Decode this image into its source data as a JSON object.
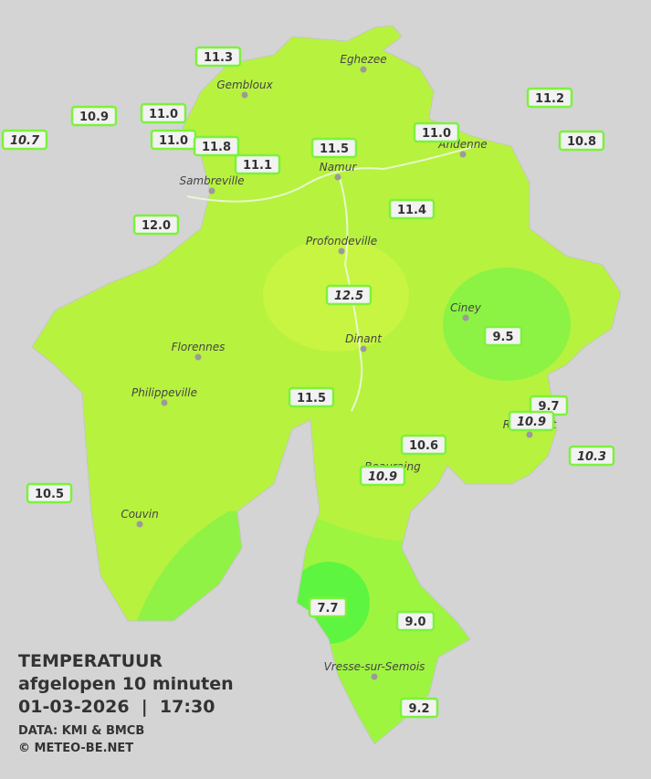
{
  "title": {
    "line1": "TEMPERATUUR",
    "line2": "afgelopen 10 minuten",
    "line3": "01-03-2026  |  17:30"
  },
  "credits": [
    "DATA: KMI & BMCB",
    "© METEO-BE.NET"
  ],
  "cities": [
    "Eghezee",
    "Gembloux",
    "Andenne",
    "Namur",
    "Sambreville",
    "Profondeville",
    "Ciney",
    "Dinant",
    "Florennes",
    "Philippeville",
    "Rochefort",
    "Beauraing",
    "Couvin",
    "Vresse-sur-Semois"
  ],
  "stations": [
    {
      "label": "11.3",
      "italic": false
    },
    {
      "label": "10.9",
      "italic": false
    },
    {
      "label": "11.0",
      "italic": false
    },
    {
      "label": "10.7",
      "italic": true
    },
    {
      "label": "11.0",
      "italic": false
    },
    {
      "label": "11.8",
      "italic": false
    },
    {
      "label": "11.1",
      "italic": false
    },
    {
      "label": "11.5",
      "italic": false
    },
    {
      "label": "11.0",
      "italic": false
    },
    {
      "label": "11.2",
      "italic": false
    },
    {
      "label": "10.8",
      "italic": false
    },
    {
      "label": "12.0",
      "italic": false
    },
    {
      "label": "11.4",
      "italic": false
    },
    {
      "label": "12.5",
      "italic": true
    },
    {
      "label": "9.5",
      "italic": false
    },
    {
      "label": "11.5",
      "italic": false
    },
    {
      "label": "9.7",
      "italic": false
    },
    {
      "label": "10.9",
      "italic": true
    },
    {
      "label": "10.6",
      "italic": false
    },
    {
      "label": "10.3",
      "italic": true
    },
    {
      "label": "10.9",
      "italic": true
    },
    {
      "label": "10.5",
      "italic": false
    },
    {
      "label": "7.7",
      "italic": false
    },
    {
      "label": "9.0",
      "italic": false
    },
    {
      "label": "9.2",
      "italic": false
    }
  ]
}
